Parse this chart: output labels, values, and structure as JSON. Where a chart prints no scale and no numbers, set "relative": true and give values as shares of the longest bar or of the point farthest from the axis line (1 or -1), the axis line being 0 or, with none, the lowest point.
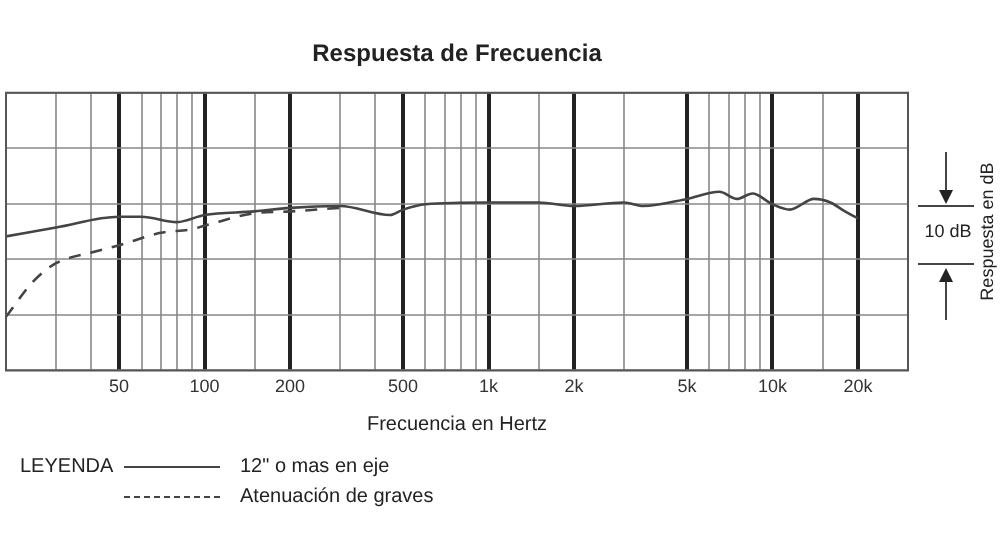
{
  "chart_data": {
    "type": "line",
    "title": "Respuesta de Frecuencia",
    "xlabel": "Frecuencia en Hertz",
    "ylabel": "Respuesta en dB",
    "legend_title": "LEYENDA",
    "annotations": [
      "10 dB"
    ],
    "relative": true,
    "log": "x",
    "grid": true,
    "legend": "bottom",
    "marker": "none",
    "xlim": [
      20,
      30000
    ],
    "xticks": [
      {
        "value": 30,
        "label": null
      },
      {
        "value": 40,
        "label": null
      },
      50,
      {
        "value": 60,
        "label": null
      },
      {
        "value": 70,
        "label": null
      },
      {
        "value": 80,
        "label": null
      },
      {
        "value": 90,
        "label": null
      },
      100,
      {
        "value": 150,
        "label": null
      },
      200,
      {
        "value": 300,
        "label": null
      },
      {
        "value": 400,
        "label": null
      },
      500,
      {
        "value": 600,
        "label": null
      },
      {
        "value": 700,
        "label": null
      },
      {
        "value": 800,
        "label": null
      },
      {
        "value": 900,
        "label": null
      },
      {
        "value": 1000,
        "label": "1k"
      },
      {
        "value": 1500,
        "label": null
      },
      {
        "value": 2000,
        "label": "2k"
      },
      {
        "value": 3000,
        "label": null
      },
      {
        "value": 5000,
        "label": "5k"
      },
      {
        "value": 6000,
        "label": null
      },
      {
        "value": 7000,
        "label": null
      },
      {
        "value": 8000,
        "label": null
      },
      {
        "value": 9000,
        "label": null
      },
      {
        "value": 10000,
        "label": "10k"
      },
      {
        "value": 15000,
        "label": null
      },
      {
        "value": 20000,
        "label": "20k"
      }
    ],
    "series": [
      {
        "name": "12\" o mas en eje",
        "color": "#444444",
        "line_style": "solid",
        "x": [
          20,
          30,
          50,
          60,
          80,
          100,
          150,
          200,
          300,
          450,
          500,
          600,
          1000,
          1500,
          2000,
          3000,
          3500,
          5000,
          6500,
          7500,
          8500,
          10000,
          11500,
          14000,
          16000,
          18000,
          20000
        ],
        "values": [
          0.75,
          0.8,
          0.86,
          0.86,
          0.83,
          0.87,
          0.89,
          0.91,
          0.92,
          0.87,
          0.9,
          0.93,
          0.94,
          0.94,
          0.92,
          0.94,
          0.92,
          0.96,
          1,
          0.96,
          0.99,
          0.93,
          0.9,
          0.96,
          0.94,
          0.89,
          0.85
        ]
      },
      {
        "name": "Atenuación de graves",
        "color": "#444444",
        "line_style": "dashed",
        "x": [
          20,
          25,
          30,
          40,
          50,
          70,
          90,
          100,
          150,
          200,
          300
        ],
        "values": [
          0.3,
          0.5,
          0.6,
          0.66,
          0.7,
          0.77,
          0.79,
          0.81,
          0.88,
          0.89,
          0.91
        ]
      }
    ]
  }
}
